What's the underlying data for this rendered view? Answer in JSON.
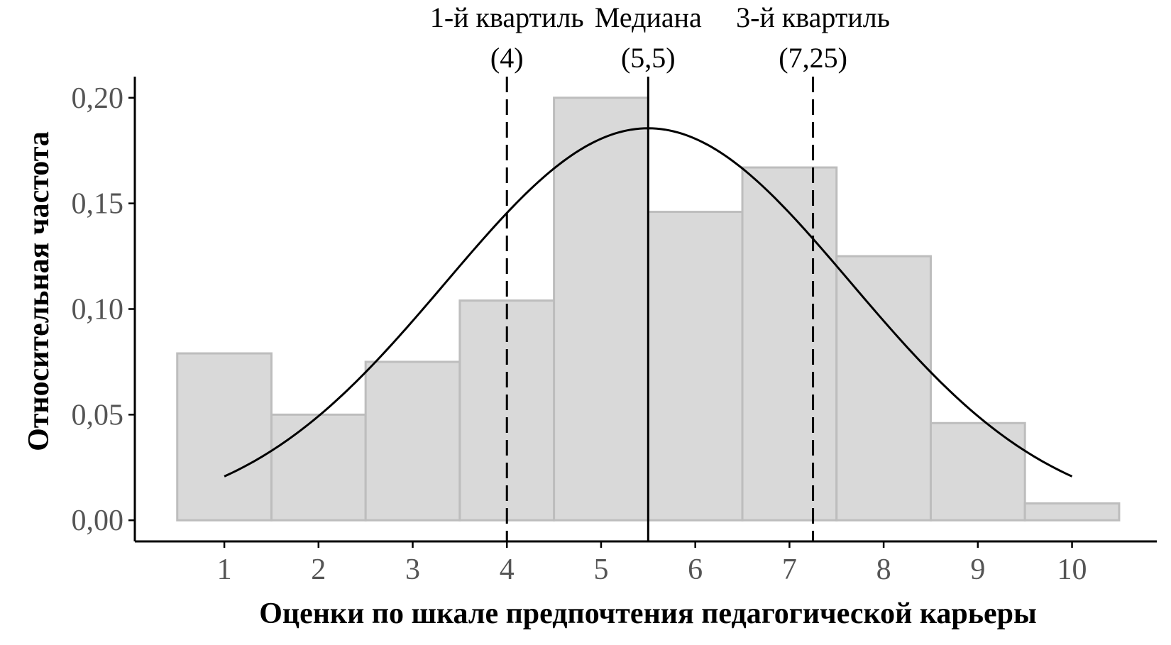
{
  "chart_data": {
    "type": "bar",
    "subtype": "histogram",
    "xlabel": "Оценки по шкале предпочтения педагогической карьеры",
    "ylabel": "Относительная частота",
    "categories": [
      1,
      2,
      3,
      4,
      5,
      6,
      7,
      8,
      9,
      10
    ],
    "values": [
      0.079,
      0.05,
      0.075,
      0.104,
      0.2,
      0.146,
      0.167,
      0.125,
      0.046,
      0.008
    ],
    "xlim": [
      0.05,
      10.9
    ],
    "ylim": [
      -0.01,
      0.21
    ],
    "x_ticks": [
      1,
      2,
      3,
      4,
      5,
      6,
      7,
      8,
      9,
      10
    ],
    "y_ticks": [
      0.0,
      0.05,
      0.1,
      0.15,
      0.2
    ],
    "y_tick_labels": [
      "0,00",
      "0,05",
      "0,10",
      "0,15",
      "0,20"
    ],
    "normal_curve": {
      "mean": 5.5,
      "sd": 2.15,
      "x_range": [
        1,
        10
      ]
    },
    "annotations": [
      {
        "x": 4,
        "line_style": "dashed",
        "label": "1-й квартиль",
        "value_label": "(4)"
      },
      {
        "x": 5.5,
        "line_style": "solid",
        "label": "Медиана",
        "value_label": "(5,5)"
      },
      {
        "x": 7.25,
        "line_style": "dashed",
        "label": "3-й квартиль",
        "value_label": "(7,25)"
      }
    ],
    "grid": false,
    "legend": "none",
    "colors": {
      "bar_fill": "#d9d9d9",
      "bar_stroke": "#bdbdbd",
      "curve": "#000000",
      "lines": "#000000"
    }
  }
}
